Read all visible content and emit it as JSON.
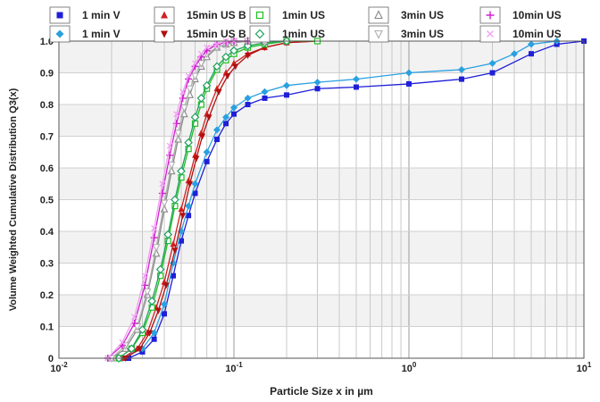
{
  "chart_data": {
    "type": "line",
    "title": "",
    "xlabel": "Particle Size x in µm",
    "ylabel": "Volume Weighted Cumulative Distribution Q3(x)",
    "x_scale": "log",
    "xlim": [
      0.01,
      10
    ],
    "ylim": [
      0,
      1.0
    ],
    "x_ticks": [
      {
        "value": 0.01,
        "base": "10",
        "exp": "-2"
      },
      {
        "value": 0.1,
        "base": "10",
        "exp": "-1"
      },
      {
        "value": 1,
        "base": "10",
        "exp": "0"
      },
      {
        "value": 10,
        "base": "10",
        "exp": "1"
      }
    ],
    "y_ticks": [
      "0",
      "0.1",
      "0.2",
      "0.3",
      "0.4",
      "0.5",
      "0.6",
      "0.7",
      "0.8",
      "0.9",
      "1.0"
    ],
    "grid": true,
    "legend_position": "top",
    "series": [
      {
        "name": "1 min V",
        "color": "#1f1fd8",
        "marker": "square-filled",
        "line": true,
        "x": [
          0.025,
          0.03,
          0.035,
          0.04,
          0.045,
          0.05,
          0.055,
          0.06,
          0.07,
          0.08,
          0.09,
          0.1,
          0.12,
          0.15,
          0.2,
          0.3,
          0.5,
          1,
          2,
          3,
          5,
          7,
          10
        ],
        "y": [
          0.0,
          0.02,
          0.06,
          0.14,
          0.26,
          0.37,
          0.45,
          0.52,
          0.62,
          0.69,
          0.74,
          0.77,
          0.8,
          0.82,
          0.83,
          0.85,
          0.855,
          0.865,
          0.88,
          0.9,
          0.96,
          0.99,
          1.0
        ]
      },
      {
        "name": "1 min V",
        "color": "#2aa0e0",
        "marker": "diamond-filled",
        "line": true,
        "x": [
          0.023,
          0.03,
          0.035,
          0.04,
          0.045,
          0.05,
          0.055,
          0.06,
          0.07,
          0.08,
          0.09,
          0.1,
          0.12,
          0.15,
          0.2,
          0.3,
          0.5,
          1,
          2,
          3,
          4,
          5,
          7
        ],
        "y": [
          0.0,
          0.03,
          0.08,
          0.17,
          0.3,
          0.4,
          0.48,
          0.55,
          0.65,
          0.72,
          0.76,
          0.79,
          0.82,
          0.84,
          0.86,
          0.87,
          0.88,
          0.9,
          0.91,
          0.93,
          0.96,
          0.99,
          1.0
        ]
      },
      {
        "name": "15min US B",
        "color": "#d02020",
        "marker": "triangle-up-filled",
        "line": true,
        "x": [
          0.023,
          0.028,
          0.032,
          0.036,
          0.04,
          0.045,
          0.05,
          0.055,
          0.06,
          0.065,
          0.07,
          0.08,
          0.09,
          0.1,
          0.12,
          0.15,
          0.2,
          0.3
        ],
        "y": [
          0.0,
          0.03,
          0.08,
          0.16,
          0.24,
          0.36,
          0.47,
          0.56,
          0.64,
          0.71,
          0.77,
          0.85,
          0.9,
          0.93,
          0.96,
          0.98,
          0.995,
          1.0
        ]
      },
      {
        "name": "15min US B",
        "color": "#b01010",
        "marker": "triangle-down-filled",
        "line": true,
        "x": [
          0.024,
          0.029,
          0.033,
          0.037,
          0.041,
          0.046,
          0.051,
          0.056,
          0.061,
          0.066,
          0.072,
          0.082,
          0.092,
          0.102,
          0.12,
          0.15,
          0.2,
          0.3
        ],
        "y": [
          0.0,
          0.03,
          0.08,
          0.15,
          0.23,
          0.34,
          0.45,
          0.55,
          0.63,
          0.7,
          0.76,
          0.84,
          0.89,
          0.92,
          0.955,
          0.98,
          0.995,
          1.0
        ]
      },
      {
        "name": "1min US",
        "color": "#20c020",
        "marker": "square-open",
        "line": true,
        "x": [
          0.022,
          0.026,
          0.03,
          0.034,
          0.038,
          0.042,
          0.046,
          0.05,
          0.055,
          0.06,
          0.065,
          0.07,
          0.08,
          0.09,
          0.1,
          0.12,
          0.15,
          0.2,
          0.3
        ],
        "y": [
          0.0,
          0.03,
          0.08,
          0.16,
          0.26,
          0.37,
          0.48,
          0.57,
          0.66,
          0.74,
          0.8,
          0.85,
          0.91,
          0.94,
          0.96,
          0.98,
          0.99,
          1.0,
          1.0
        ]
      },
      {
        "name": "1min US",
        "color": "#20a060",
        "marker": "diamond-open",
        "line": true,
        "x": [
          0.022,
          0.026,
          0.03,
          0.034,
          0.038,
          0.042,
          0.046,
          0.05,
          0.055,
          0.06,
          0.065,
          0.07,
          0.08,
          0.09,
          0.1,
          0.12,
          0.15,
          0.2
        ],
        "y": [
          0.0,
          0.03,
          0.09,
          0.18,
          0.28,
          0.39,
          0.5,
          0.59,
          0.68,
          0.76,
          0.82,
          0.86,
          0.92,
          0.95,
          0.97,
          0.985,
          0.995,
          1.0
        ]
      },
      {
        "name": "3min US",
        "color": "#888888",
        "marker": "triangle-up-open",
        "line": true,
        "x": [
          0.02,
          0.024,
          0.028,
          0.032,
          0.036,
          0.04,
          0.044,
          0.048,
          0.052,
          0.056,
          0.06,
          0.065,
          0.07,
          0.08,
          0.09,
          0.1,
          0.12,
          0.15
        ],
        "y": [
          0.0,
          0.03,
          0.09,
          0.2,
          0.33,
          0.47,
          0.59,
          0.69,
          0.77,
          0.83,
          0.88,
          0.92,
          0.95,
          0.98,
          0.99,
          0.995,
          1.0,
          1.0
        ]
      },
      {
        "name": "3min US",
        "color": "#b0b0b0",
        "marker": "triangle-down-open",
        "line": true,
        "x": [
          0.02,
          0.024,
          0.028,
          0.032,
          0.036,
          0.04,
          0.044,
          0.048,
          0.052,
          0.056,
          0.06,
          0.065,
          0.07,
          0.08,
          0.09,
          0.1,
          0.12
        ],
        "y": [
          0.0,
          0.04,
          0.1,
          0.21,
          0.35,
          0.49,
          0.61,
          0.71,
          0.79,
          0.85,
          0.89,
          0.93,
          0.96,
          0.98,
          0.99,
          1.0,
          1.0
        ]
      },
      {
        "name": "10min US",
        "color": "#d020d0",
        "marker": "plus",
        "line": true,
        "x": [
          0.019,
          0.023,
          0.027,
          0.031,
          0.035,
          0.039,
          0.043,
          0.047,
          0.051,
          0.055,
          0.06,
          0.065,
          0.07,
          0.08,
          0.09,
          0.1,
          0.12
        ],
        "y": [
          0.0,
          0.04,
          0.11,
          0.23,
          0.38,
          0.52,
          0.64,
          0.74,
          0.82,
          0.88,
          0.92,
          0.95,
          0.97,
          0.99,
          0.995,
          1.0,
          1.0
        ]
      },
      {
        "name": "10min US",
        "color": "#f0a0f0",
        "marker": "cross",
        "line": true,
        "x": [
          0.019,
          0.023,
          0.027,
          0.031,
          0.035,
          0.039,
          0.043,
          0.047,
          0.051,
          0.055,
          0.06,
          0.065,
          0.07,
          0.08,
          0.09,
          0.1
        ],
        "y": [
          0.0,
          0.05,
          0.13,
          0.26,
          0.41,
          0.55,
          0.67,
          0.77,
          0.84,
          0.89,
          0.93,
          0.96,
          0.98,
          0.99,
          1.0,
          1.0
        ]
      }
    ]
  }
}
